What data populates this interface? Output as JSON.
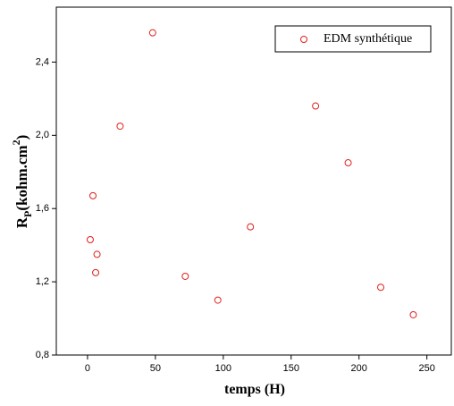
{
  "chart_data": {
    "type": "scatter",
    "xlabel": "temps (H)",
    "ylabel": {
      "main": "R",
      "sub": "P",
      "text": "(kohm.cm",
      "sup": "2",
      "close": ")"
    },
    "series": [
      {
        "name": "EDM synthétique",
        "color": "#e0201b",
        "x": [
          2,
          4,
          6,
          7,
          24,
          48,
          72,
          96,
          120,
          168,
          192,
          216,
          240
        ],
        "values": [
          1.43,
          1.67,
          1.25,
          1.35,
          2.05,
          2.56,
          1.23,
          1.1,
          1.5,
          2.16,
          1.85,
          1.17,
          1.02
        ]
      }
    ],
    "xlim": [
      -23,
      268
    ],
    "xticks": [
      0,
      50,
      100,
      150,
      200,
      250
    ],
    "ylim": [
      0.8,
      2.7
    ],
    "yticks": [
      {
        "value": 0.8,
        "label": "0,8"
      },
      {
        "value": 1.2,
        "label": "1,2"
      },
      {
        "value": 1.6,
        "label": "1,6"
      },
      {
        "value": 2.0,
        "label": "2,0"
      },
      {
        "value": 2.4,
        "label": "2,4"
      }
    ],
    "legend": "top-right"
  }
}
